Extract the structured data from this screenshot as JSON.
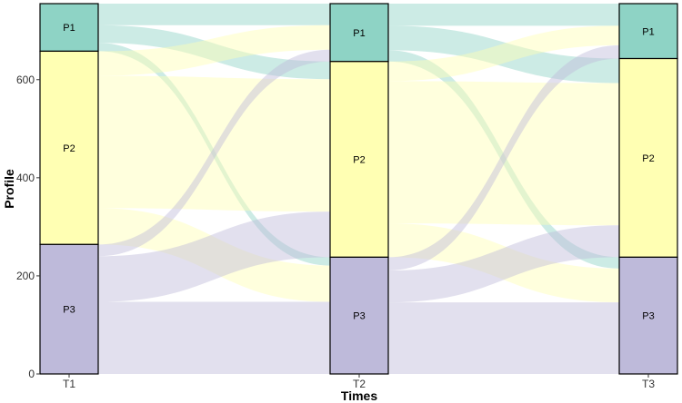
{
  "chart_data": {
    "type": "alluvial",
    "xlabel": "Times",
    "ylabel": "Profile",
    "ylim": [
      0,
      755
    ],
    "yticks": [
      0,
      200,
      400,
      600
    ],
    "axes": [
      "T1",
      "T2",
      "T3"
    ],
    "categories": [
      "P1",
      "P2",
      "P3"
    ],
    "colors": {
      "P1": "#8ED3C5",
      "P2": "#FFFFB3",
      "P3": "#BEBADA"
    },
    "strata": {
      "T1": {
        "P1": 97,
        "P2": 394,
        "P3": 264
      },
      "T2": {
        "P1": 118,
        "P2": 399,
        "P3": 238
      },
      "T3": {
        "P1": 112,
        "P2": 405,
        "P3": 238
      }
    },
    "flows": [
      {
        "from": "T1",
        "to": "T2",
        "links": [
          {
            "source": "P1",
            "target": "P1",
            "value": 44
          },
          {
            "source": "P1",
            "target": "P2",
            "value": 36
          },
          {
            "source": "P1",
            "target": "P3",
            "value": 17
          },
          {
            "source": "P2",
            "target": "P1",
            "value": 50
          },
          {
            "source": "P2",
            "target": "P2",
            "value": 270
          },
          {
            "source": "P2",
            "target": "P3",
            "value": 74
          },
          {
            "source": "P3",
            "target": "P1",
            "value": 24
          },
          {
            "source": "P3",
            "target": "P2",
            "value": 93
          },
          {
            "source": "P3",
            "target": "P3",
            "value": 147
          }
        ]
      },
      {
        "from": "T2",
        "to": "T3",
        "links": [
          {
            "source": "P1",
            "target": "P1",
            "value": 45
          },
          {
            "source": "P1",
            "target": "P2",
            "value": 50
          },
          {
            "source": "P1",
            "target": "P3",
            "value": 23
          },
          {
            "source": "P2",
            "target": "P1",
            "value": 40
          },
          {
            "source": "P2",
            "target": "P2",
            "value": 290
          },
          {
            "source": "P2",
            "target": "P3",
            "value": 69
          },
          {
            "source": "P3",
            "target": "P1",
            "value": 27
          },
          {
            "source": "P3",
            "target": "P2",
            "value": 65
          },
          {
            "source": "P3",
            "target": "P3",
            "value": 146
          }
        ]
      }
    ]
  }
}
